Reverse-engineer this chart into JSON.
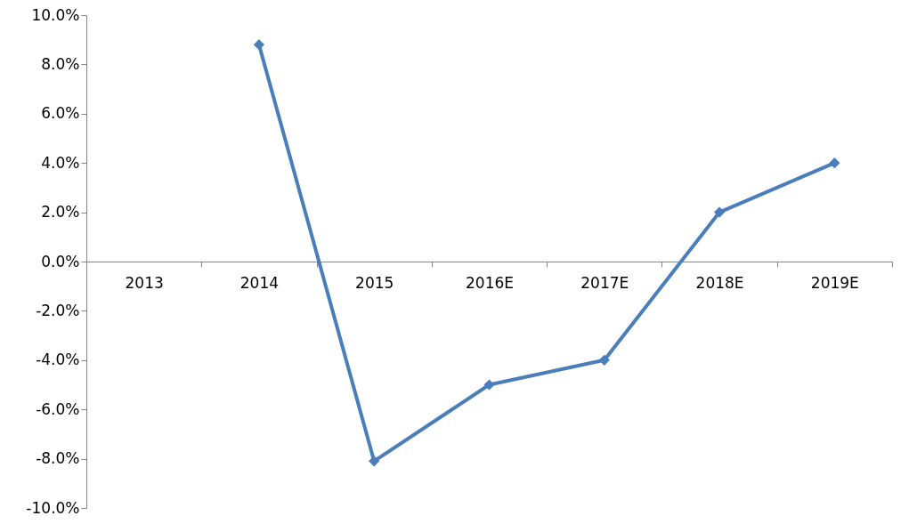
{
  "chart_data": {
    "type": "line",
    "categories": [
      "2013",
      "2014",
      "2015",
      "2016E",
      "2017E",
      "2018E",
      "2019E"
    ],
    "series": [
      {
        "color": "#4a7ebb",
        "values": [
          null,
          8.8,
          -8.1,
          -5.0,
          -4.0,
          2.0,
          4.0
        ]
      }
    ],
    "ylim": [
      -10,
      10
    ],
    "yticks": [
      {
        "value": -10,
        "label": "-10.0%"
      },
      {
        "value": -8,
        "label": "-8.0%"
      },
      {
        "value": -6,
        "label": "-6.0%"
      },
      {
        "value": -4,
        "label": "-4.0%"
      },
      {
        "value": -2,
        "label": "-2.0%"
      },
      {
        "value": 0,
        "label": "0.0%"
      },
      {
        "value": 2,
        "label": "2.0%"
      },
      {
        "value": 4,
        "label": "4.0%"
      },
      {
        "value": 6,
        "label": "6.0%"
      },
      {
        "value": 8,
        "label": "8.0%"
      },
      {
        "value": 10,
        "label": "10.0%"
      }
    ],
    "grid": false,
    "marker": "diamond",
    "line_style": "solid"
  }
}
